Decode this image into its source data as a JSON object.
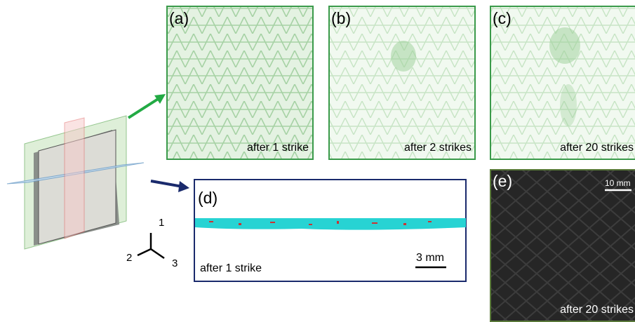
{
  "panels": [
    {
      "label": "(a)",
      "caption": "after 1 strike"
    },
    {
      "label": "(b)",
      "caption": "after 2 strikes"
    },
    {
      "label": "(c)",
      "caption": "after 20 strikes"
    },
    {
      "label": "(d)",
      "caption": "after 1 strike",
      "scale": "3 mm"
    },
    {
      "label": "(e)",
      "caption": "after 20 strikes",
      "scale": "10 mm"
    }
  ],
  "axes": {
    "labels": [
      "1",
      "2",
      "3"
    ]
  }
}
